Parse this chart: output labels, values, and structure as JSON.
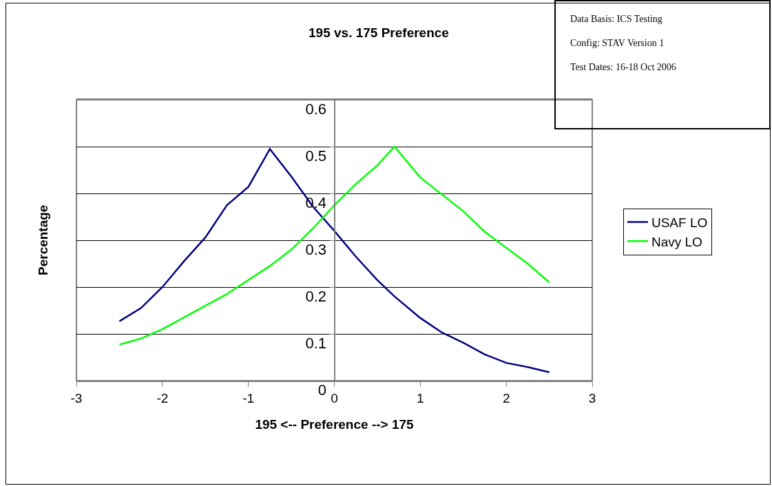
{
  "chart_data": {
    "type": "line",
    "title": "195 vs. 175 Preference",
    "xlabel": "195 <-- Preference --> 175",
    "ylabel": "Percentage",
    "annotations": [
      "Data Basis: ICS Testing",
      "Config: STAV Version 1",
      "Test Dates: 16-18 Oct 2006"
    ],
    "x": [
      -2.5,
      -2.25,
      -2.0,
      -1.75,
      -1.5,
      -1.25,
      -1.0,
      -0.75,
      -0.5,
      -0.25,
      0,
      0.25,
      0.5,
      0.7,
      1.0,
      1.25,
      1.5,
      1.75,
      2.0,
      2.25,
      2.5
    ],
    "series": [
      {
        "name": "USAF LO",
        "color": "#000080",
        "values": [
          0.127,
          0.155,
          0.2,
          0.255,
          0.306,
          0.375,
          0.414,
          0.495,
          0.436,
          0.372,
          0.32,
          0.265,
          0.215,
          0.18,
          0.134,
          0.103,
          0.081,
          0.056,
          0.038,
          0.029,
          0.018
        ]
      },
      {
        "name": "Navy LO",
        "color": "#00ff00",
        "values": [
          0.077,
          0.09,
          0.11,
          0.135,
          0.16,
          0.185,
          0.215,
          0.245,
          0.28,
          0.325,
          0.375,
          0.42,
          0.46,
          0.5,
          0.434,
          0.398,
          0.362,
          0.318,
          0.284,
          0.25,
          0.21
        ]
      }
    ],
    "xlim": [
      -3,
      3
    ],
    "xticks": [
      -3,
      -2,
      -1,
      0,
      1,
      2,
      3
    ],
    "ylim": [
      0,
      0.6
    ],
    "yticks": [
      0,
      0.1,
      0.2,
      0.3,
      0.4,
      0.5,
      0.6
    ],
    "grid": "y",
    "legend": "right",
    "marker": "none",
    "line_style": "solid"
  }
}
